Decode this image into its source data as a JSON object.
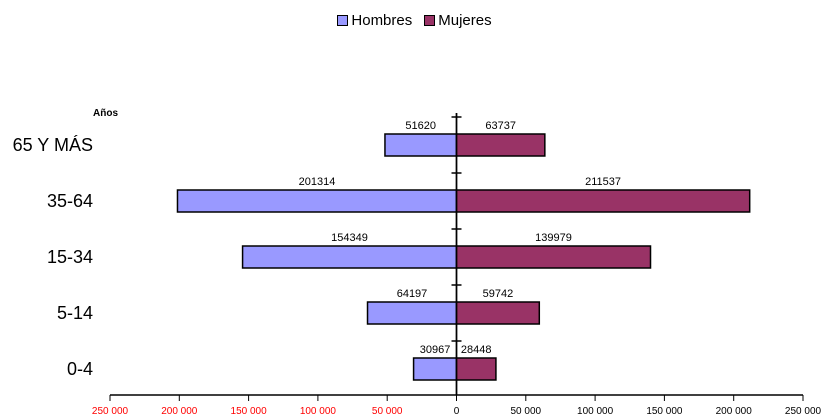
{
  "chart_data": {
    "type": "bar",
    "orientation": "horizontal",
    "layout": "population-pyramid",
    "y_axis_title": "Años",
    "categories": [
      "65 Y MÁS",
      "35-64",
      "15-34",
      "5-14",
      "0-4"
    ],
    "series": [
      {
        "name": "Hombres",
        "color": "#9999ff",
        "values": [
          51620,
          201314,
          154349,
          64197,
          30967
        ]
      },
      {
        "name": "Mujeres",
        "color": "#993366",
        "values": [
          63737,
          211537,
          139979,
          59742,
          28448
        ]
      }
    ],
    "xlim": [
      -250000,
      250000
    ],
    "x_ticks": [
      -250000,
      -200000,
      -150000,
      -100000,
      -50000,
      0,
      50000,
      100000,
      150000,
      200000,
      250000
    ],
    "x_tick_labels": [
      "250 000",
      "200 000",
      "150 000",
      "100 000",
      "50 000",
      "0",
      "50 000",
      "100 000",
      "150 000",
      "200 000",
      "250 000"
    ],
    "tick_label_color_negative": "#ff0000",
    "tick_label_color_positive": "#000000",
    "legend_position": "top-center",
    "grid": false
  }
}
